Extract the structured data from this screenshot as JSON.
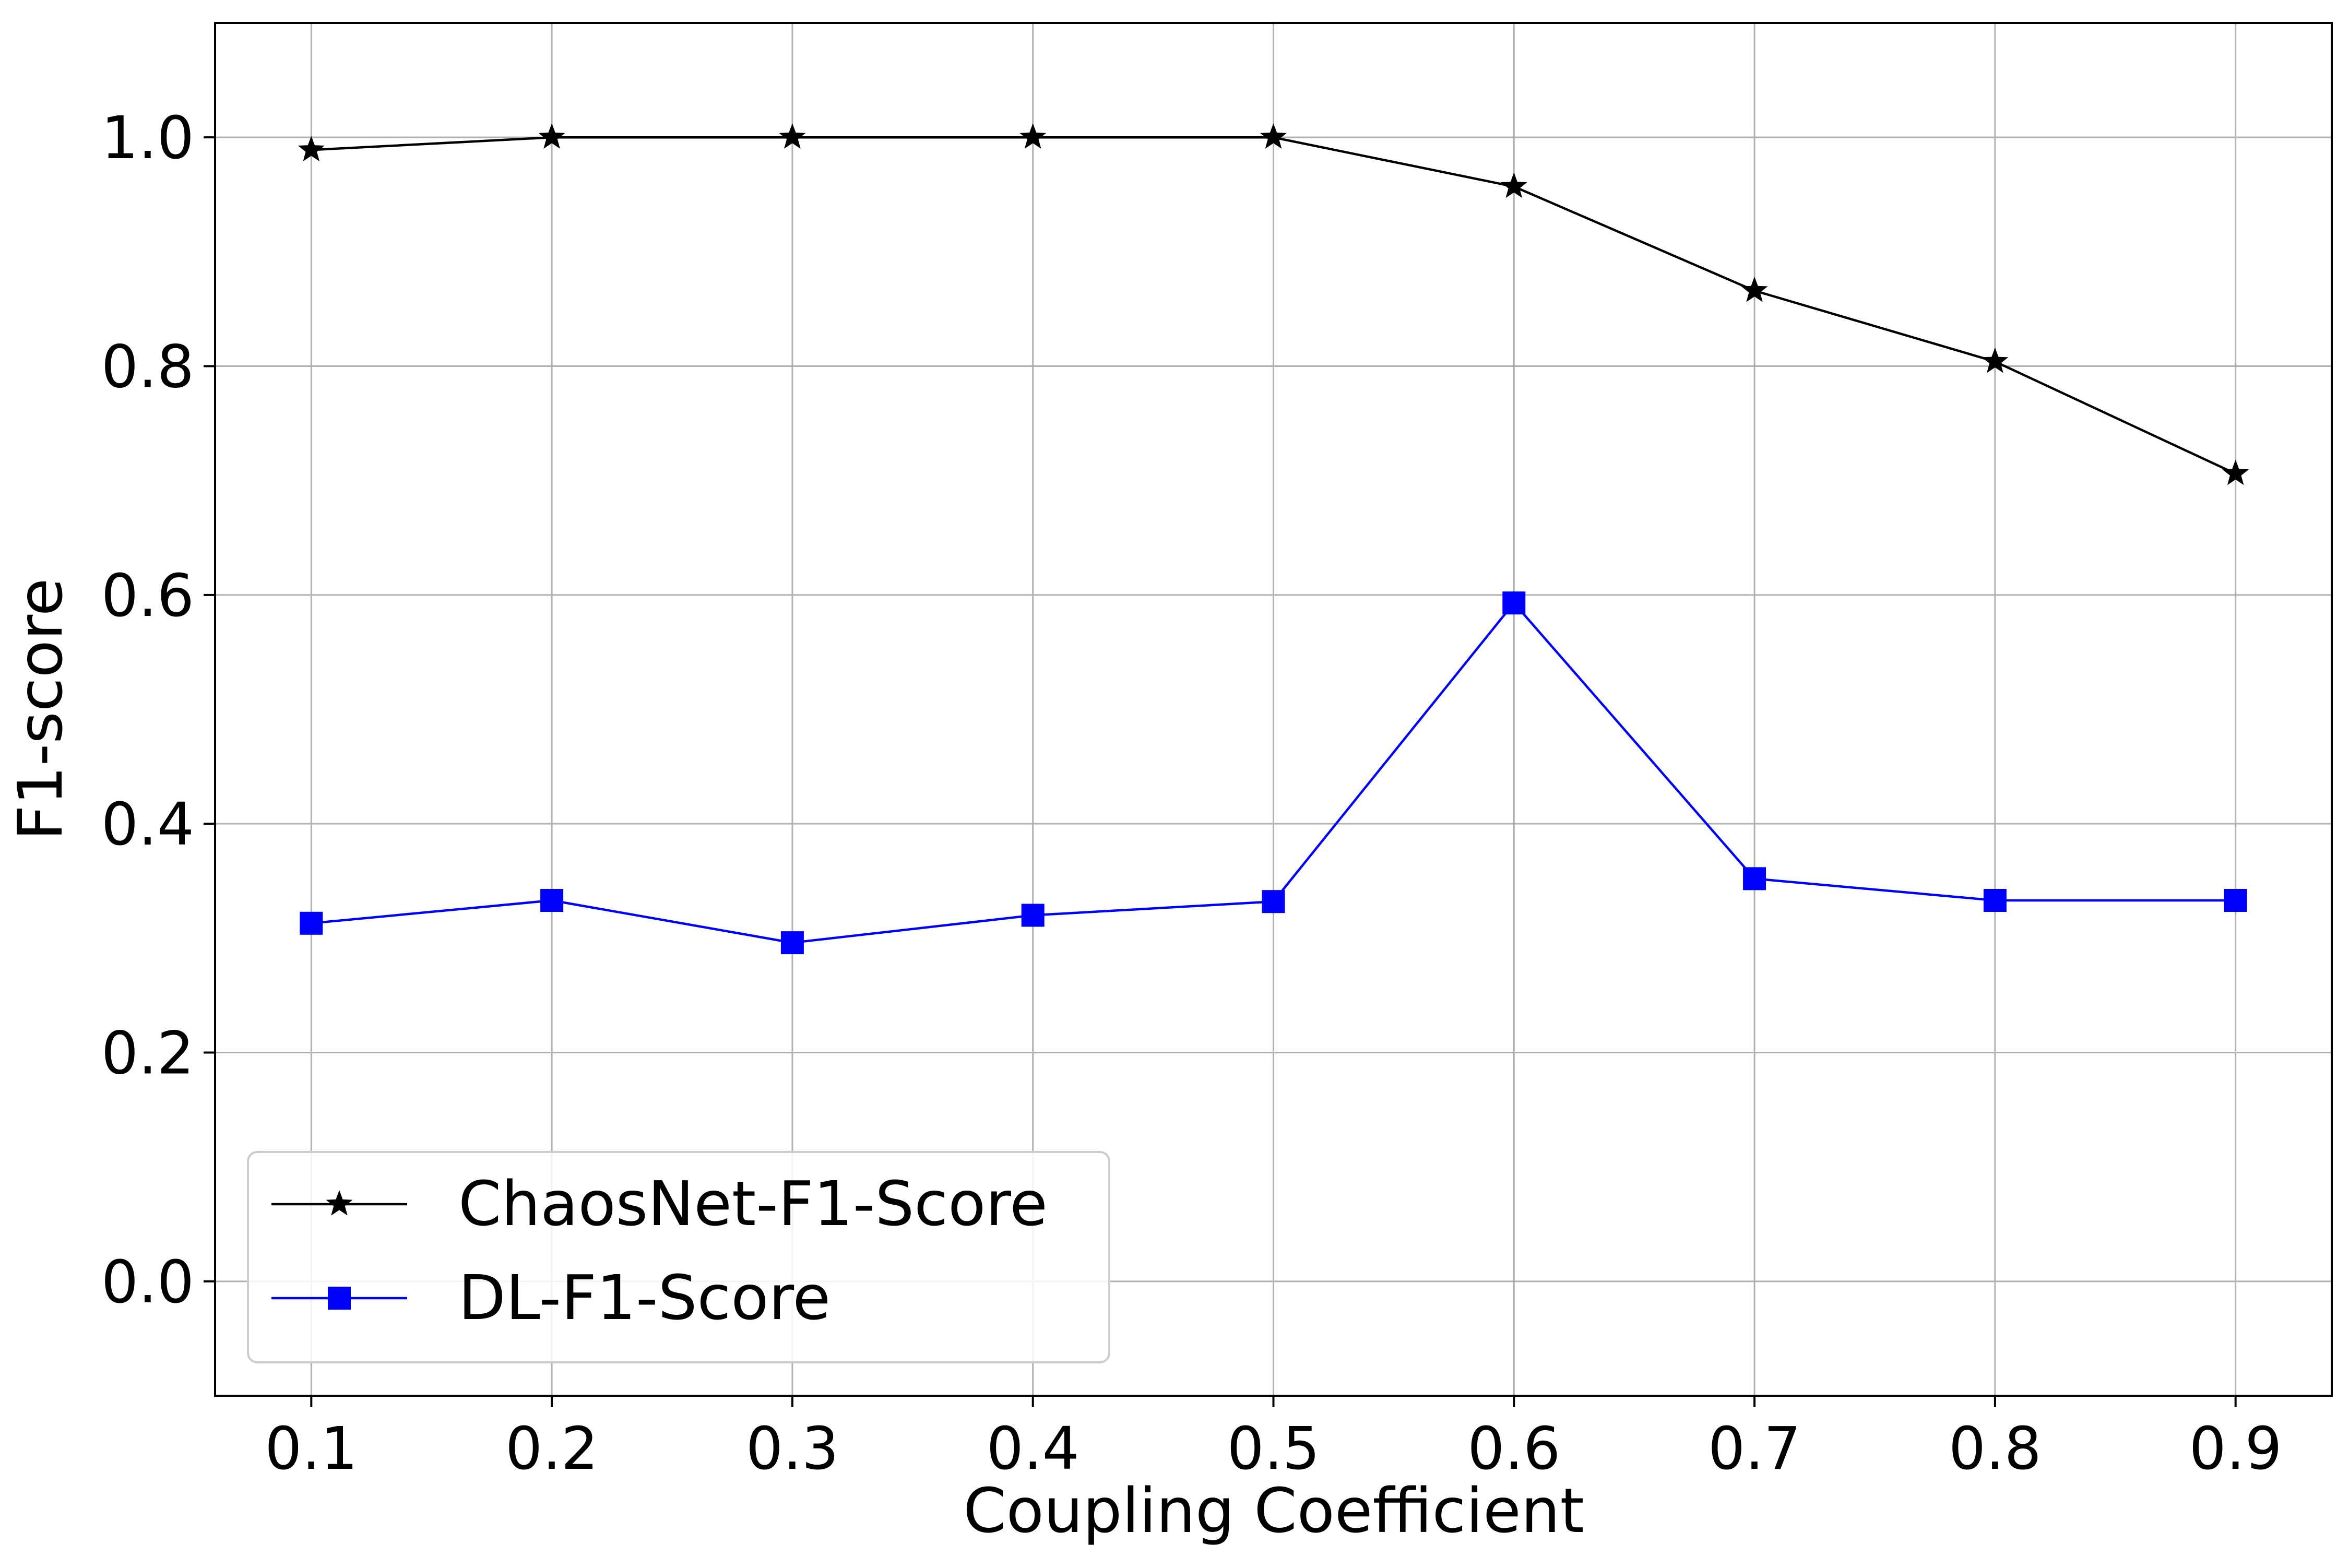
{
  "chart_data": {
    "type": "line",
    "title": "",
    "xlabel": "Coupling Coefficient",
    "ylabel": "F1-score",
    "x": [
      0.1,
      0.2,
      0.3,
      0.4,
      0.5,
      0.6,
      0.7,
      0.8,
      0.9
    ],
    "x_tick_labels": [
      "0.1",
      "0.2",
      "0.3",
      "0.4",
      "0.5",
      "0.6",
      "0.7",
      "0.8",
      "0.9"
    ],
    "y_ticks": [
      0.0,
      0.2,
      0.4,
      0.6,
      0.8,
      1.0
    ],
    "y_tick_labels": [
      "0.0",
      "0.2",
      "0.4",
      "0.6",
      "0.8",
      "1.0"
    ],
    "xlim": [
      0.06,
      0.94
    ],
    "ylim": [
      -0.1,
      1.1
    ],
    "grid": true,
    "legend_position": "lower-left",
    "series": [
      {
        "name": "ChaosNet-F1-Score",
        "values": [
          0.989,
          1.0,
          1.0,
          1.0,
          1.0,
          0.957,
          0.866,
          0.804,
          0.706
        ],
        "color": "#000000",
        "marker": "star"
      },
      {
        "name": "DL-F1-Score",
        "values": [
          0.313,
          0.333,
          0.296,
          0.32,
          0.332,
          0.593,
          0.352,
          0.333,
          0.333
        ],
        "color": "#0000ff",
        "marker": "square"
      }
    ]
  }
}
